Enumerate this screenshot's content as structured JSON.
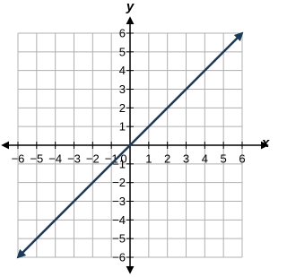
{
  "chart_data": {
    "type": "line",
    "x_label": "x",
    "y_label": "y",
    "x": [
      -6,
      6
    ],
    "series": [
      {
        "color": "#1b3a57",
        "values": [
          -6,
          6
        ]
      }
    ],
    "xlim": [
      -6,
      6
    ],
    "ylim": [
      -6,
      6
    ],
    "xticks": [
      {
        "value": -6,
        "label": "−6"
      },
      {
        "value": -5,
        "label": "−5"
      },
      {
        "value": -4,
        "label": "−4"
      },
      {
        "value": -3,
        "label": "−3"
      },
      {
        "value": -2,
        "label": "−2"
      },
      {
        "value": -1,
        "label": "−1"
      },
      0,
      1,
      2,
      3,
      4,
      5,
      6
    ],
    "yticks": [
      {
        "value": -6,
        "label": "−6"
      },
      {
        "value": -5,
        "label": "−5"
      },
      {
        "value": -4,
        "label": "−4"
      },
      {
        "value": -3,
        "label": "−3"
      },
      {
        "value": -2,
        "label": "−2"
      },
      {
        "value": -1,
        "label": "−1"
      },
      1,
      2,
      3,
      4,
      5,
      6
    ],
    "grid": true
  }
}
